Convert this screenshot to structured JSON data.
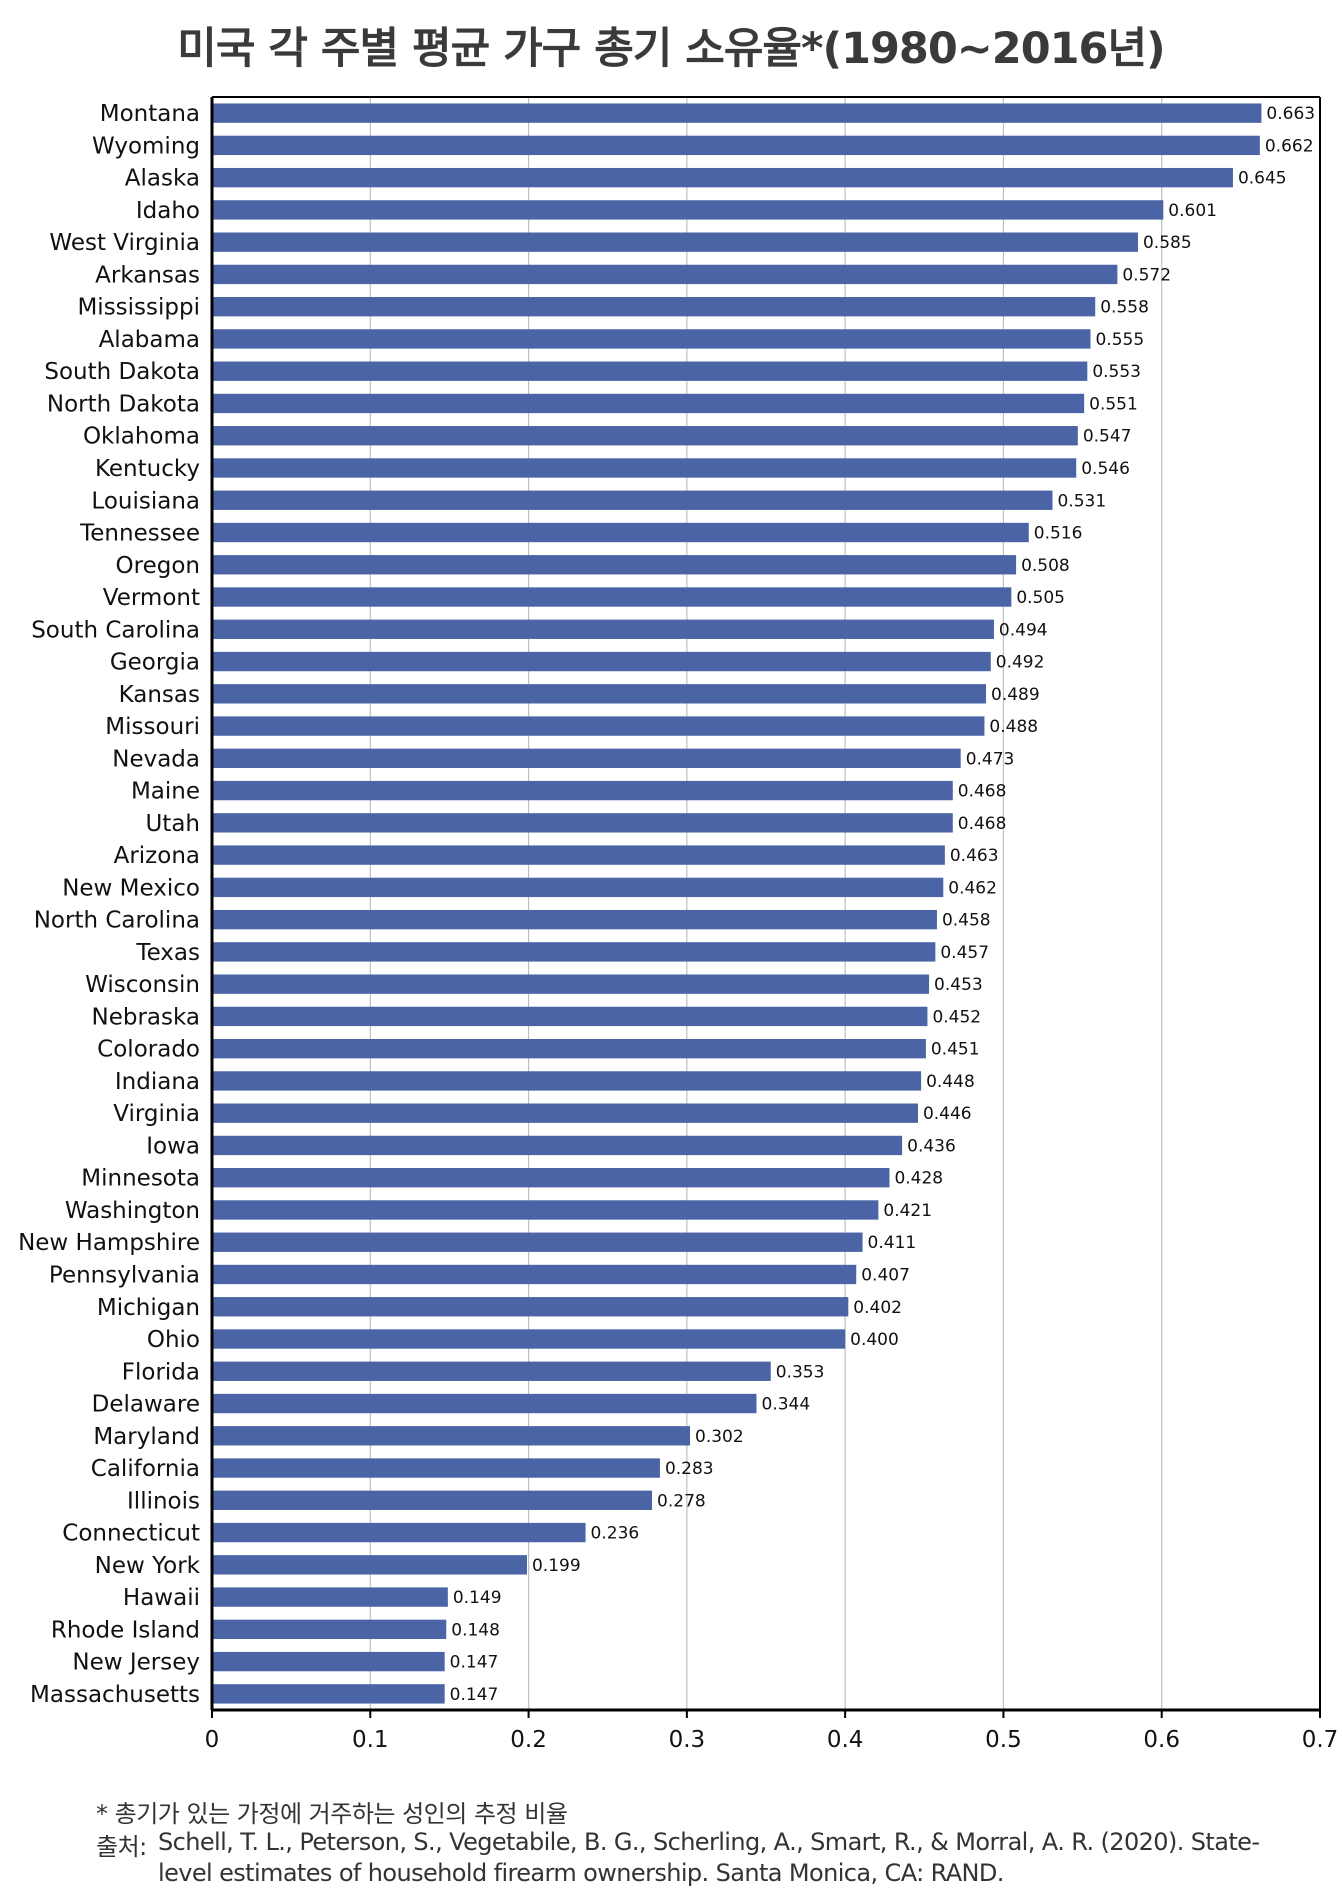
{
  "chart_data": {
    "type": "bar",
    "orientation": "horizontal",
    "title": "미국 각 주별 평균 가구 총기 소유율*(1980~2016년)",
    "categories": [
      "Montana",
      "Wyoming",
      "Alaska",
      "Idaho",
      "West Virginia",
      "Arkansas",
      "Mississippi",
      "Alabama",
      "South Dakota",
      "North Dakota",
      "Oklahoma",
      "Kentucky",
      "Louisiana",
      "Tennessee",
      "Oregon",
      "Vermont",
      "South Carolina",
      "Georgia",
      "Kansas",
      "Missouri",
      "Nevada",
      "Maine",
      "Utah",
      "Arizona",
      "New Mexico",
      "North Carolina",
      "Texas",
      "Wisconsin",
      "Nebraska",
      "Colorado",
      "Indiana",
      "Virginia",
      "Iowa",
      "Minnesota",
      "Washington",
      "New Hampshire",
      "Pennsylvania",
      "Michigan",
      "Ohio",
      "Florida",
      "Delaware",
      "Maryland",
      "California",
      "Illinois",
      "Connecticut",
      "New York",
      "Hawaii",
      "Rhode Island",
      "New Jersey",
      "Massachusetts"
    ],
    "values": [
      0.663,
      0.662,
      0.645,
      0.601,
      0.585,
      0.572,
      0.558,
      0.555,
      0.553,
      0.551,
      0.547,
      0.546,
      0.531,
      0.516,
      0.508,
      0.505,
      0.494,
      0.492,
      0.489,
      0.488,
      0.473,
      0.468,
      0.468,
      0.463,
      0.462,
      0.458,
      0.457,
      0.453,
      0.452,
      0.451,
      0.448,
      0.446,
      0.436,
      0.428,
      0.421,
      0.411,
      0.407,
      0.402,
      0.4,
      0.353,
      0.344,
      0.302,
      0.283,
      0.278,
      0.236,
      0.199,
      0.149,
      0.148,
      0.147,
      0.147
    ],
    "value_labels": [
      "0.663",
      "0.662",
      "0.645",
      "0.601",
      "0.585",
      "0.572",
      "0.558",
      "0.555",
      "0.553",
      "0.551",
      "0.547",
      "0.546",
      "0.531",
      "0.516",
      "0.508",
      "0.505",
      "0.494",
      "0.492",
      "0.489",
      "0.488",
      "0.473",
      "0.468",
      "0.468",
      "0.463",
      "0.462",
      "0.458",
      "0.457",
      "0.453",
      "0.452",
      "0.451",
      "0.448",
      "0.446",
      "0.436",
      "0.428",
      "0.421",
      "0.411",
      "0.407",
      "0.402",
      "0.400",
      "0.353",
      "0.344",
      "0.302",
      "0.283",
      "0.278",
      "0.236",
      "0.199",
      "0.149",
      "0.148",
      "0.147",
      "0.147"
    ],
    "xlim": [
      0,
      0.7
    ],
    "xticks": [
      0,
      0.1,
      0.2,
      0.3,
      0.4,
      0.5,
      0.6,
      0.7
    ],
    "xtick_labels": [
      "0",
      "0.1",
      "0.2",
      "0.3",
      "0.4",
      "0.5",
      "0.6",
      "0.7"
    ],
    "grid": true,
    "bar_color": "#4a64a6",
    "grid_color": "#bfbfbf"
  },
  "footnote": "* 총기가 있는 가정에 거주하는 성인의 추정 비율",
  "source_label": "출처:",
  "source_text": "Schell, T. L., Peterson, S., Vegetabile, B. G., Scherling, A., Smart, R., & Morral, A. R. (2020). State-level estimates of household firearm ownership. Santa Monica, CA: RAND."
}
